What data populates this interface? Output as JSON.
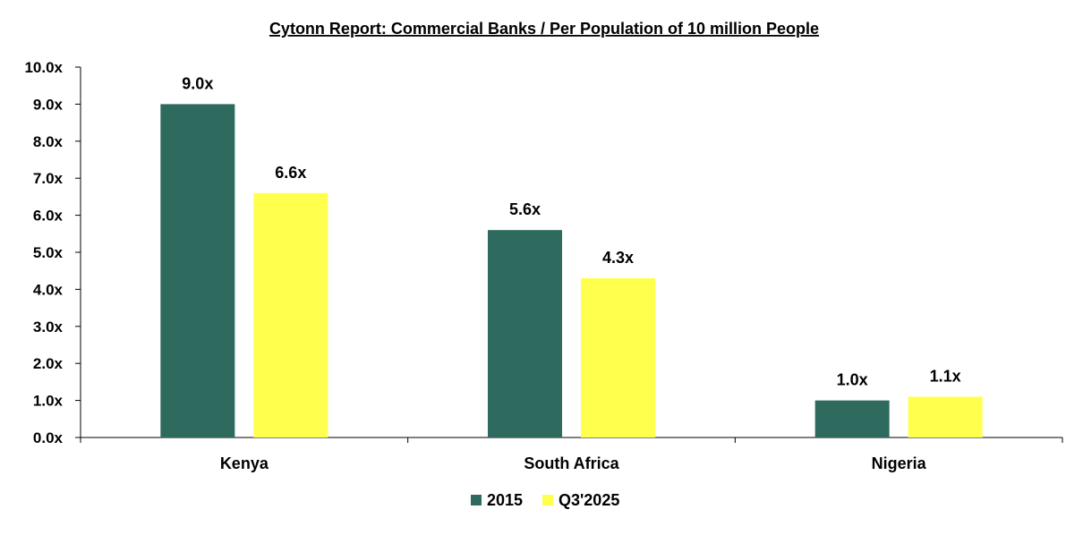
{
  "chart_data": {
    "type": "bar",
    "title": "Cytonn Report: Commercial Banks / Per Population of 10 million People",
    "xlabel": "",
    "ylabel": "",
    "categories": [
      "Kenya",
      "South Africa",
      "Nigeria"
    ],
    "series": [
      {
        "name": "2015",
        "color": "#2E6B5E",
        "values": [
          9.0,
          5.6,
          1.0
        ],
        "labels": [
          "9.0x",
          "5.6x",
          "1.0x"
        ]
      },
      {
        "name": "Q3'2025",
        "color": "#FFFF4D",
        "values": [
          6.6,
          4.3,
          1.1
        ],
        "labels": [
          "6.6x",
          "4.3x",
          "1.1x"
        ]
      }
    ],
    "ylim": [
      0,
      10
    ],
    "yticks": [
      0,
      1,
      2,
      3,
      4,
      5,
      6,
      7,
      8,
      9,
      10
    ],
    "ytick_labels": [
      "0.0x",
      "1.0x",
      "2.0x",
      "3.0x",
      "4.0x",
      "5.0x",
      "6.0x",
      "7.0x",
      "8.0x",
      "9.0x",
      "10.0x"
    ],
    "grid": false,
    "legend_position": "bottom-center"
  }
}
